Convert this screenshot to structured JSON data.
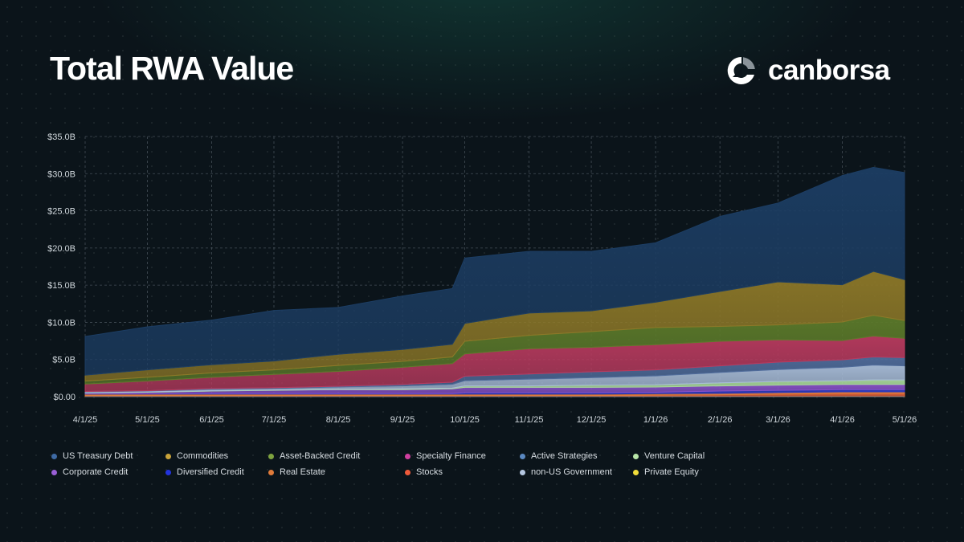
{
  "header": {
    "title": "Total RWA Value"
  },
  "brand": {
    "name": "canborsa"
  },
  "chart_data": {
    "type": "area",
    "stacked": true,
    "title": "Total RWA Value",
    "xlabel": "",
    "ylabel": "",
    "grid": true,
    "legend_position": "bottom",
    "ylim": [
      0,
      35
    ],
    "y_unit": "billions USD",
    "y_ticks": [
      0,
      5,
      10,
      15,
      20,
      25,
      30,
      35
    ],
    "y_tick_labels": [
      "$0.00",
      "$5.0B",
      "$10.0B",
      "$15.0B",
      "$20.0B",
      "$25.0B",
      "$30.0B",
      "$35.0B"
    ],
    "x_tick_labels": [
      "4/1/25",
      "5/1/25",
      "6/1/25",
      "7/1/25",
      "8/1/25",
      "9/1/25",
      "10/1/25",
      "11/1/25",
      "12/1/25",
      "1/1/26",
      "2/1/26",
      "3/1/26",
      "4/1/26",
      "5/1/26"
    ],
    "x": [
      "4/1/25",
      "5/1/25",
      "6/1/25",
      "7/1/25",
      "8/1/25",
      "9/1/25",
      "9/25/25",
      "10/1/25",
      "11/1/25",
      "12/1/25",
      "1/1/26",
      "2/1/26",
      "3/1/26",
      "4/1/26",
      "4/16/26",
      "5/1/26"
    ],
    "series": [
      {
        "name": "Private Equity",
        "color": "#e6d63a",
        "values": [
          0.05,
          0.05,
          0.05,
          0.05,
          0.05,
          0.05,
          0.05,
          0.05,
          0.05,
          0.05,
          0.05,
          0.05,
          0.05,
          0.05,
          0.05,
          0.05
        ]
      },
      {
        "name": "Stocks",
        "color": "#e8643a",
        "values": [
          0.1,
          0.1,
          0.1,
          0.1,
          0.1,
          0.1,
          0.1,
          0.1,
          0.1,
          0.1,
          0.15,
          0.2,
          0.3,
          0.4,
          0.4,
          0.4
        ]
      },
      {
        "name": "Real Estate",
        "color": "#e07b3a",
        "values": [
          0.2,
          0.2,
          0.2,
          0.2,
          0.2,
          0.2,
          0.2,
          0.2,
          0.2,
          0.2,
          0.2,
          0.2,
          0.2,
          0.2,
          0.2,
          0.2
        ]
      },
      {
        "name": "Diversified Credit",
        "color": "#2f3cc4",
        "values": [
          0.05,
          0.05,
          0.1,
          0.1,
          0.1,
          0.1,
          0.1,
          0.2,
          0.2,
          0.2,
          0.2,
          0.3,
          0.3,
          0.3,
          0.3,
          0.3
        ]
      },
      {
        "name": "Corporate Credit",
        "color": "#8a52c9",
        "values": [
          0.1,
          0.2,
          0.3,
          0.4,
          0.5,
          0.5,
          0.6,
          0.7,
          0.7,
          0.7,
          0.7,
          0.7,
          0.7,
          0.7,
          0.7,
          0.7
        ]
      },
      {
        "name": "Venture Capital",
        "color": "#a8d89a",
        "values": [
          0.05,
          0.05,
          0.05,
          0.05,
          0.05,
          0.1,
          0.1,
          0.2,
          0.2,
          0.3,
          0.3,
          0.4,
          0.5,
          0.5,
          0.6,
          0.6
        ]
      },
      {
        "name": "non-US Government",
        "color": "#a8bcd8",
        "values": [
          0.1,
          0.1,
          0.2,
          0.2,
          0.3,
          0.4,
          0.5,
          0.7,
          0.9,
          1.0,
          1.2,
          1.4,
          1.6,
          1.8,
          2.0,
          1.9
        ]
      },
      {
        "name": "Active Strategies",
        "color": "#4f6b9a",
        "values": [
          0.05,
          0.05,
          0.1,
          0.1,
          0.1,
          0.2,
          0.3,
          0.6,
          0.7,
          0.8,
          0.8,
          0.9,
          1.0,
          1.0,
          1.1,
          1.1
        ]
      },
      {
        "name": "Specialty Finance",
        "color": "#b83a5e",
        "values": [
          1.0,
          1.3,
          1.5,
          1.8,
          2.0,
          2.3,
          2.5,
          3.0,
          3.4,
          3.3,
          3.4,
          3.3,
          3.0,
          2.6,
          2.8,
          2.6
        ]
      },
      {
        "name": "Asset-Backed Credit",
        "color": "#5c7a2a",
        "values": [
          0.4,
          0.5,
          0.6,
          0.6,
          0.8,
          0.8,
          0.9,
          1.7,
          1.8,
          2.1,
          2.3,
          2.0,
          2.0,
          2.5,
          2.8,
          2.4
        ]
      },
      {
        "name": "Commodities",
        "color": "#8d7828",
        "values": [
          0.8,
          1.0,
          1.1,
          1.2,
          1.5,
          1.6,
          1.7,
          2.4,
          3.0,
          2.8,
          3.4,
          4.7,
          5.8,
          5.0,
          5.9,
          5.5
        ]
      },
      {
        "name": "US Treasury Debt",
        "color": "#1c3d63",
        "values": [
          5.2,
          5.8,
          6.0,
          6.8,
          6.3,
          7.2,
          7.5,
          8.8,
          8.3,
          8.0,
          8.0,
          10.1,
          10.6,
          14.7,
          14.0,
          14.4
        ]
      }
    ]
  },
  "legend": {
    "items": [
      {
        "label": "US Treasury Debt",
        "color": "#3e6aa4"
      },
      {
        "label": "Commodities",
        "color": "#c9a33a"
      },
      {
        "label": "Asset-Backed Credit",
        "color": "#7ea33f"
      },
      {
        "label": "Specialty Finance",
        "color": "#cf3f9f"
      },
      {
        "label": "Active Strategies",
        "color": "#5a88c0"
      },
      {
        "label": "Venture Capital",
        "color": "#b8e6a8"
      },
      {
        "label": "Corporate Credit",
        "color": "#9a5fd6"
      },
      {
        "label": "Diversified Credit",
        "color": "#2233dd"
      },
      {
        "label": "Real Estate",
        "color": "#e07b3a"
      },
      {
        "label": "Stocks",
        "color": "#ef5a3a"
      },
      {
        "label": "non-US Government",
        "color": "#b4c6e0"
      },
      {
        "label": "Private Equity",
        "color": "#f0dc3a"
      }
    ]
  }
}
